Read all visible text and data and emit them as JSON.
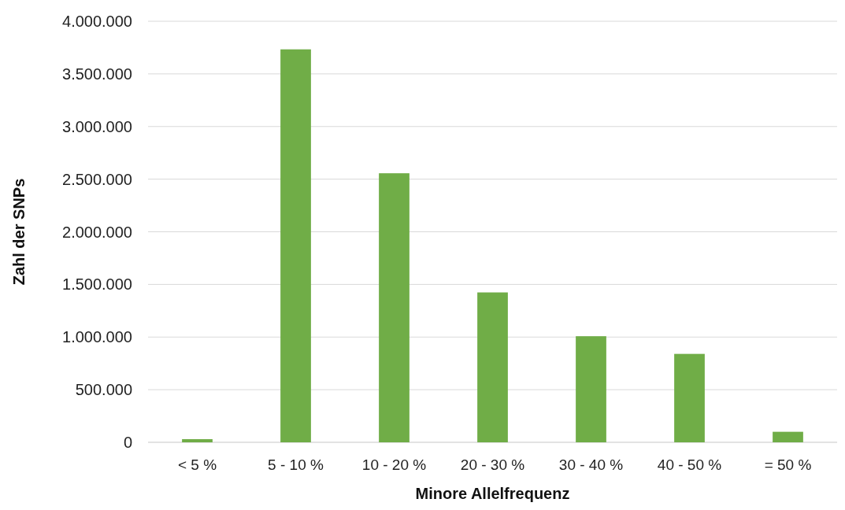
{
  "chart_data": {
    "type": "bar",
    "xlabel": "Minore Allelfrequenz",
    "ylabel": "Zahl der SNPs",
    "categories": [
      "< 5 %",
      "5 - 10 %",
      "10 - 20 %",
      "20 - 30 %",
      "30 - 40 %",
      "40 - 50 %",
      "= 50 %"
    ],
    "values": [
      30000,
      3733000,
      2556000,
      1424000,
      1008000,
      840000,
      100000
    ],
    "color": "#70ad47",
    "ylim": [
      0,
      4000000
    ],
    "yticks": [
      {
        "value": 0,
        "label": "0"
      },
      {
        "value": 500000,
        "label": "500.000"
      },
      {
        "value": 1000000,
        "label": "1.000.000"
      },
      {
        "value": 1500000,
        "label": "1.500.000"
      },
      {
        "value": 2000000,
        "label": "2.000.000"
      },
      {
        "value": 2500000,
        "label": "2.500.000"
      },
      {
        "value": 3000000,
        "label": "3.000.000"
      },
      {
        "value": 3500000,
        "label": "3.500.000"
      },
      {
        "value": 4000000,
        "label": "4.000.000"
      }
    ],
    "grid": true
  }
}
